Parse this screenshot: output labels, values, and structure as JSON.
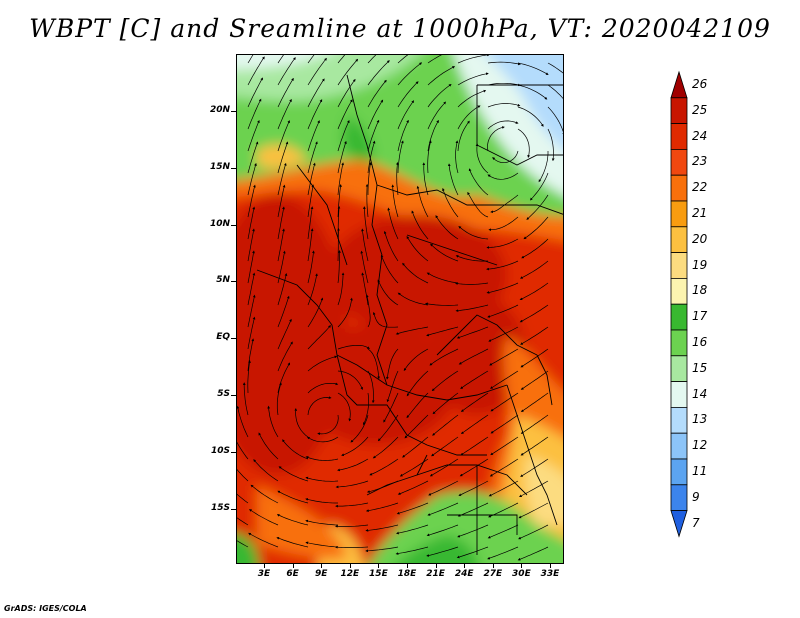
{
  "title": "WBPT [C] and Sreamline at 1000hPa, VT: 2020042109",
  "credit": "GrADS: IGES/COLA",
  "map": {
    "variable": "Wet-bulb potential temperature",
    "units": "C",
    "level": "1000hPa",
    "valid_time": "2020042109",
    "lat_labels": [
      "20N",
      "15N",
      "10N",
      "5N",
      "EQ",
      "5S",
      "10S",
      "15S"
    ],
    "lon_labels": [
      "3E",
      "6E",
      "9E",
      "12E",
      "15E",
      "18E",
      "21E",
      "24E",
      "27E",
      "30E",
      "33E"
    ]
  },
  "colorbar": {
    "levels": [
      "26",
      "25",
      "24",
      "23",
      "22",
      "21",
      "20",
      "19",
      "18",
      "17",
      "16",
      "15",
      "14",
      "13",
      "12",
      "11",
      "9",
      "7"
    ],
    "colors": [
      "#a00000",
      "#c81600",
      "#e02a00",
      "#f04810",
      "#f8700c",
      "#f89c10",
      "#fcc040",
      "#fcdc80",
      "#fcf4b0",
      "#38b830",
      "#6cd250",
      "#a8e8a0",
      "#e4f8f0",
      "#b4dcfc",
      "#8cc4f8",
      "#5ca4f0",
      "#3c84ec",
      "#2060e0"
    ]
  },
  "colors": {
    "text": "#000000",
    "background": "#ffffff",
    "streamline": "#000000"
  }
}
